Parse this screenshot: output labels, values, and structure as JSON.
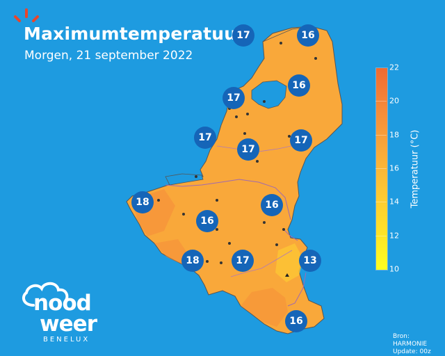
{
  "title": "Maximumtemperatuur",
  "subtitle": "Morgen, 21 september 2022",
  "legend": {
    "label": "Temperatuur (°C)",
    "ticks": [
      "22",
      "20",
      "18",
      "16",
      "14",
      "12",
      "10"
    ],
    "min": 10,
    "max": 22
  },
  "colors": {
    "sea": "#1e9be0",
    "land": "#f9a83a",
    "bubble": "#1565b8"
  },
  "cities": [
    {
      "id": "c1",
      "value": "17"
    },
    {
      "id": "c2",
      "value": "16"
    },
    {
      "id": "c3",
      "value": "16"
    },
    {
      "id": "c4",
      "value": "17"
    },
    {
      "id": "c5",
      "value": "17"
    },
    {
      "id": "c6",
      "value": "17"
    },
    {
      "id": "c7",
      "value": "17"
    },
    {
      "id": "c8",
      "value": "18"
    },
    {
      "id": "c9",
      "value": "16"
    },
    {
      "id": "c10",
      "value": "16"
    },
    {
      "id": "c11",
      "value": "18"
    },
    {
      "id": "c12",
      "value": "17"
    },
    {
      "id": "c13",
      "value": "13"
    },
    {
      "id": "c14",
      "value": "16"
    }
  ],
  "brand": {
    "word1": "nood",
    "word2": "weer",
    "sub": "BENELUX"
  },
  "source": {
    "line1": "Bron: HARMONIE",
    "line2": "Update: 00z"
  }
}
